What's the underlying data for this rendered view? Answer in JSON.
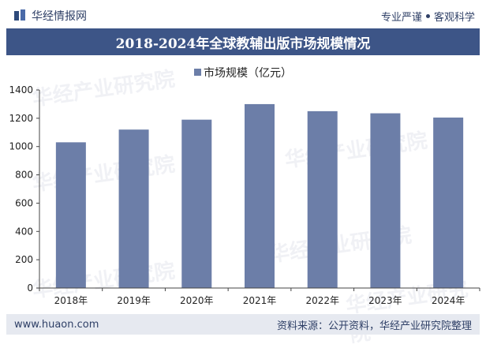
{
  "header": {
    "brand": "华经情报网",
    "tagline_left": "专业严谨",
    "tagline_right": "客观科学"
  },
  "watermark_text": "华经产业研究院",
  "chart_data": {
    "type": "bar",
    "title": "2018-2024年全球教辅出版市场规模情况",
    "categories": [
      "2018年",
      "2019年",
      "2020年",
      "2021年",
      "2022年",
      "2023年",
      "2024年"
    ],
    "series": [
      {
        "name": "市场规模（亿元）",
        "values": [
          1030,
          1120,
          1190,
          1300,
          1250,
          1235,
          1205
        ]
      }
    ],
    "ylim": [
      0,
      1400
    ],
    "yticks": [
      0,
      200,
      400,
      600,
      800,
      1000,
      1200,
      1400
    ],
    "legend": "top-center",
    "grid": false,
    "colors": {
      "bar": "#6c7ea8",
      "title_band": "#3d5587"
    }
  },
  "footer": {
    "website": "www.huaon.com",
    "source": "资料来源：公开资料，华经产业研究院整理"
  }
}
